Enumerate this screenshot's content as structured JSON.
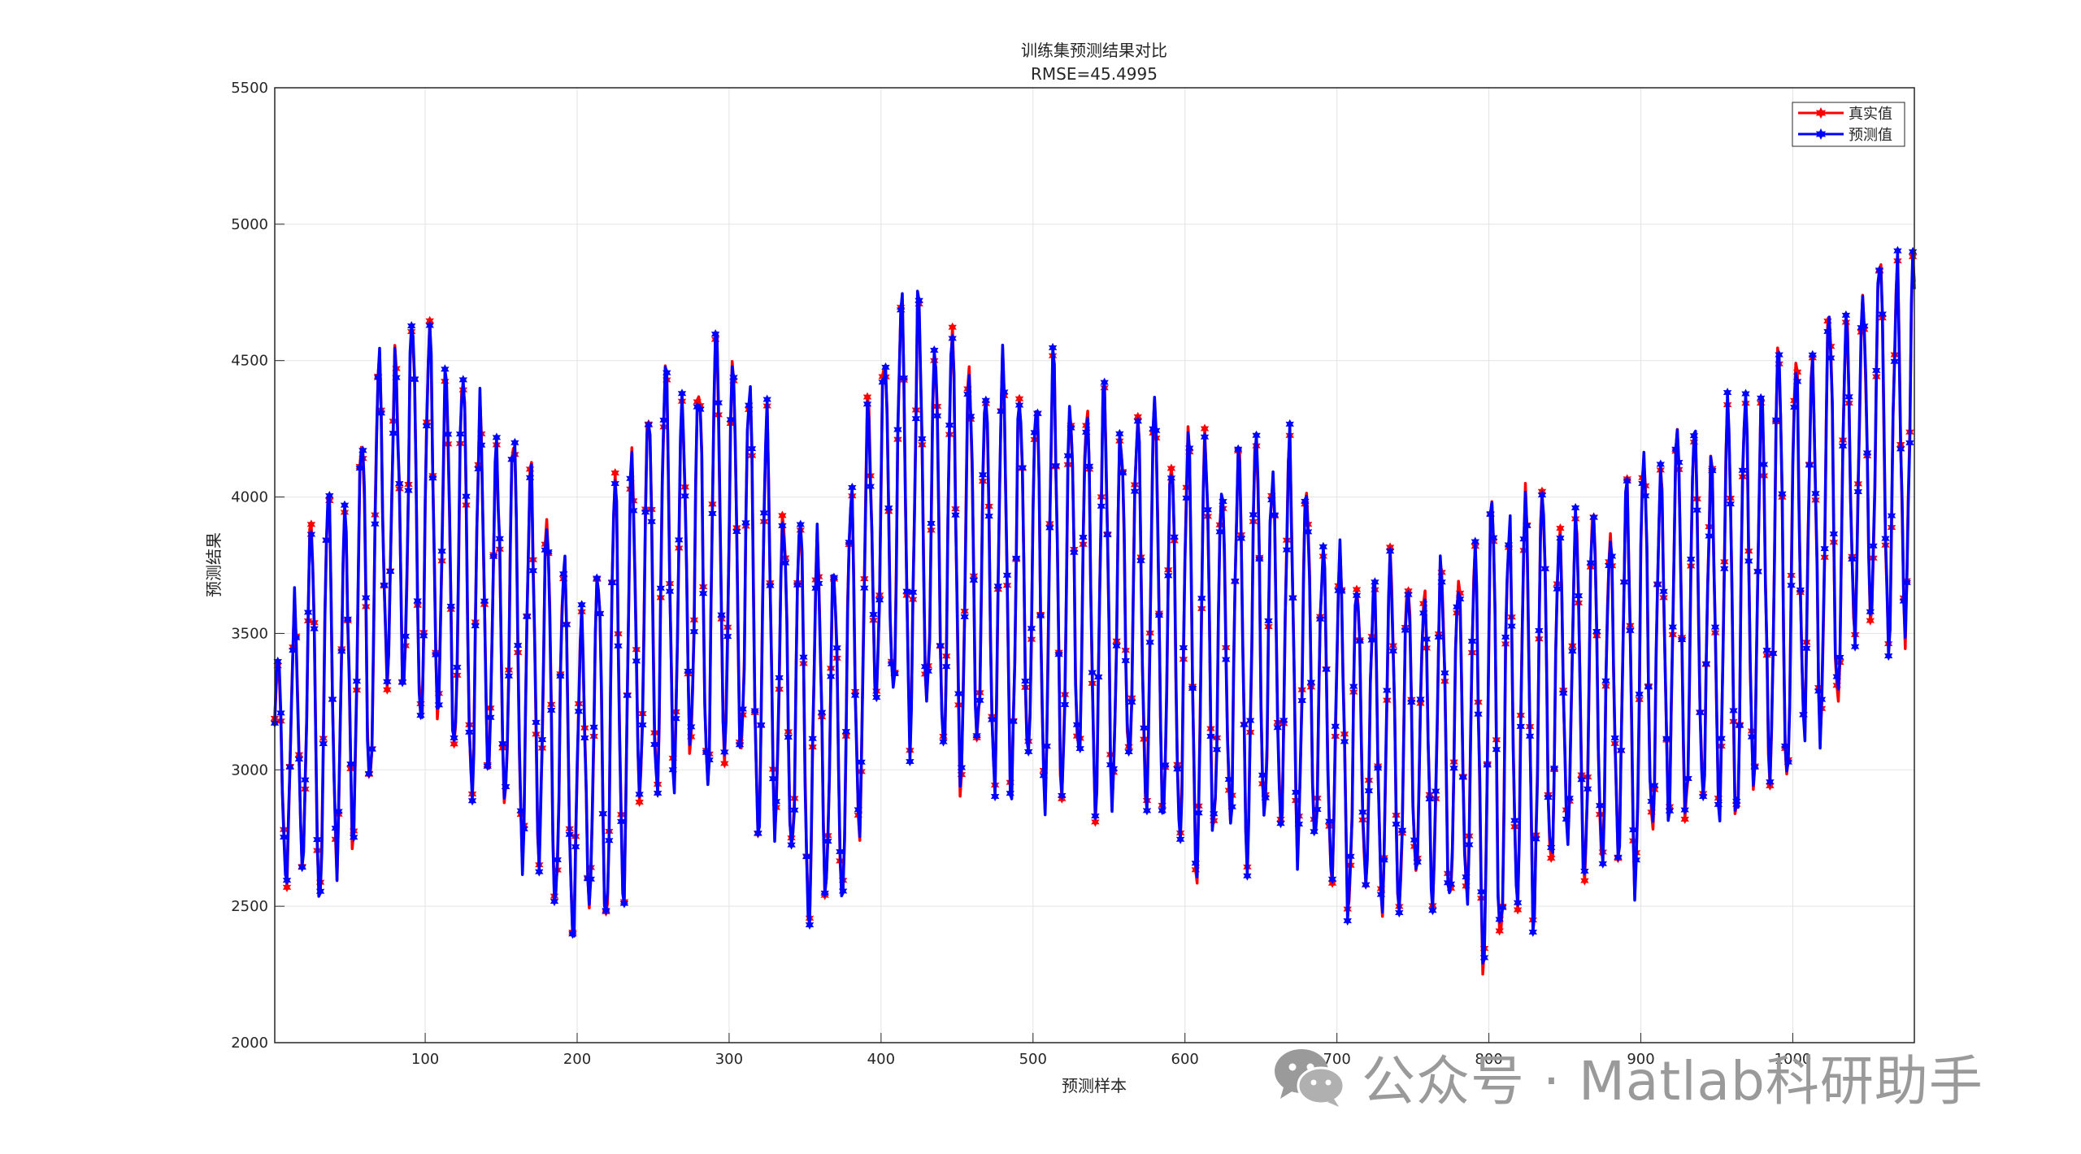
{
  "chart_data": {
    "type": "line",
    "title": "训练集预测结果对比",
    "subtitle": "RMSE=45.4995",
    "xlabel": "预测样本",
    "ylabel": "预测结果",
    "xlim": [
      1,
      1080
    ],
    "ylim": [
      2000,
      5500
    ],
    "xticks": [
      100,
      200,
      300,
      400,
      500,
      600,
      700,
      800,
      900,
      1000
    ],
    "yticks": [
      2000,
      2500,
      3000,
      3500,
      4000,
      4500,
      5000,
      5500
    ],
    "grid": true,
    "legend_position": "top-right",
    "series": [
      {
        "name": "真实值",
        "color": "#ff0000",
        "marker": "hexagram"
      },
      {
        "name": "预测值",
        "color": "#0000ff",
        "marker": "hexagram"
      }
    ],
    "envelope": {
      "note_x": [
        1,
        25,
        50,
        75,
        100,
        125,
        150,
        175,
        200,
        225,
        250,
        275,
        300,
        325,
        350,
        375,
        400,
        425,
        450,
        475,
        500,
        525,
        550,
        575,
        600,
        625,
        650,
        675,
        700,
        725,
        750,
        775,
        800,
        825,
        850,
        875,
        900,
        925,
        950,
        975,
        1000,
        1025,
        1050,
        1080
      ],
      "peak": [
        3300,
        3900,
        4000,
        4600,
        4600,
        4400,
        4200,
        4100,
        3500,
        4000,
        4400,
        4400,
        4600,
        4200,
        3800,
        3800,
        4600,
        4700,
        4500,
        4400,
        4400,
        4400,
        4300,
        4300,
        4200,
        4100,
        4200,
        4100,
        3700,
        3700,
        3700,
        3700,
        3900,
        4000,
        3900,
        3900,
        4100,
        4200,
        4200,
        4400,
        4500,
        4600,
        4800,
        4900
      ],
      "trough": [
        2600,
        2600,
        2650,
        3300,
        3250,
        3000,
        2900,
        2600,
        2450,
        2450,
        3000,
        3000,
        3050,
        2800,
        2550,
        2500,
        3300,
        3200,
        3000,
        3000,
        2950,
        2950,
        2900,
        2950,
        2650,
        2800,
        2750,
        2800,
        2550,
        2500,
        2550,
        2550,
        2300,
        2500,
        2700,
        2650,
        2650,
        2900,
        2850,
        2900,
        3050,
        3200,
        3600,
        3400
      ]
    }
  },
  "watermark": {
    "text": "公众号 · Matlab科研助手",
    "icon": "wechat-icon"
  }
}
